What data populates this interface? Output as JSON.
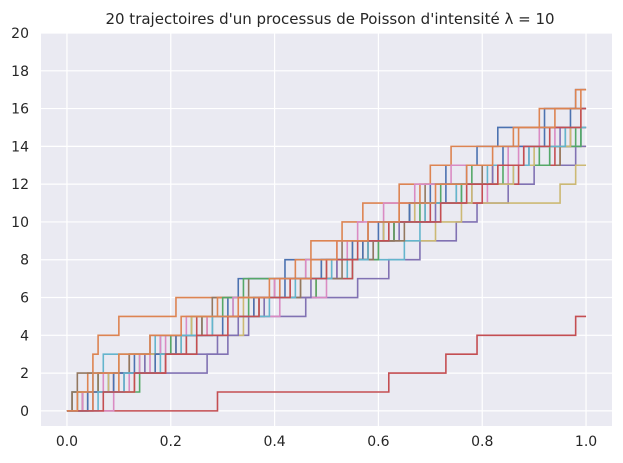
{
  "chart_data": {
    "type": "line",
    "title": "20 trajectoires d'un processus de Poisson d'intensité λ = 10",
    "xlabel": "",
    "ylabel": "",
    "xlim": [
      -0.05,
      1.05
    ],
    "ylim": [
      -0.8,
      20
    ],
    "xticks": [
      0.0,
      0.2,
      0.4,
      0.6,
      0.8,
      1.0
    ],
    "xtick_labels": [
      "0.0",
      "0.2",
      "0.4",
      "0.6",
      "0.8",
      "1.0"
    ],
    "yticks": [
      0,
      2,
      4,
      6,
      8,
      10,
      12,
      14,
      16,
      18,
      20
    ],
    "ytick_labels": [
      "0",
      "2",
      "4",
      "6",
      "8",
      "10",
      "12",
      "14",
      "16",
      "18",
      "20"
    ],
    "grid": true,
    "background": "#eaeaf2",
    "grid_color": "#ffffff",
    "step_style": "post",
    "series": [
      {
        "color": "#c44e52",
        "jumps": [
          0.29,
          0.62,
          0.73,
          0.79,
          0.98
        ]
      },
      {
        "color": "#dd8452",
        "jumps": [
          0.01,
          0.04,
          0.05,
          0.06,
          0.1,
          0.21,
          0.48,
          0.52,
          0.57,
          0.61,
          0.64,
          0.68,
          0.83,
          0.95
        ]
      },
      {
        "color": "#55a868",
        "jumps": [
          0.03,
          0.14,
          0.15,
          0.25,
          0.28,
          0.35,
          0.48,
          0.55,
          0.58,
          0.63,
          0.66,
          0.72,
          0.78,
          0.91,
          0.98
        ]
      },
      {
        "color": "#8172b3",
        "jumps": [
          0.05,
          0.09,
          0.27,
          0.31,
          0.35,
          0.46,
          0.56,
          0.62,
          0.68,
          0.75,
          0.79,
          0.85,
          0.9,
          0.98
        ]
      },
      {
        "color": "#937860",
        "jumps": [
          0.01,
          0.02,
          0.12,
          0.2,
          0.26,
          0.28,
          0.35,
          0.46,
          0.53,
          0.58,
          0.66,
          0.69,
          0.82,
          0.95,
          0.99
        ]
      },
      {
        "color": "#da8bc3",
        "jumps": [
          0.09,
          0.12,
          0.16,
          0.19,
          0.23,
          0.41,
          0.5,
          0.52,
          0.54,
          0.63,
          0.67,
          0.81,
          0.85,
          0.87,
          0.91
        ]
      },
      {
        "color": "#ccb974",
        "jumps": [
          0.04,
          0.13,
          0.17,
          0.23,
          0.34,
          0.38,
          0.45,
          0.5,
          0.6,
          0.71,
          0.76,
          0.95,
          0.98
        ]
      },
      {
        "color": "#4c72b0",
        "jumps": [
          0.02,
          0.08,
          0.13,
          0.18,
          0.28,
          0.31,
          0.33,
          0.42,
          0.57,
          0.61,
          0.66,
          0.7,
          0.73,
          0.79,
          0.83,
          0.92,
          0.98
        ]
      },
      {
        "color": "#64b5cd",
        "jumps": [
          0.01,
          0.05,
          0.07,
          0.17,
          0.26,
          0.32,
          0.41,
          0.54,
          0.65,
          0.68,
          0.72,
          0.76,
          0.86,
          0.93,
          0.99
        ]
      },
      {
        "color": "#c44e52",
        "jumps": [
          0.03,
          0.09,
          0.19,
          0.23,
          0.25,
          0.36,
          0.4,
          0.55,
          0.58,
          0.63,
          0.7,
          0.8,
          0.87,
          0.94,
          0.97
        ]
      },
      {
        "color": "#dd8452",
        "jumps": [
          0.05,
          0.1,
          0.12,
          0.21,
          0.27,
          0.29,
          0.41,
          0.44,
          0.47,
          0.53,
          0.57,
          0.64,
          0.7,
          0.74,
          0.86,
          0.91,
          0.98
        ]
      },
      {
        "color": "#55a868",
        "jumps": [
          0.02,
          0.06,
          0.14,
          0.2,
          0.24,
          0.3,
          0.34,
          0.49,
          0.6,
          0.63,
          0.68,
          0.76,
          0.84,
          0.93,
          0.99
        ]
      },
      {
        "color": "#8172b3",
        "jumps": [
          0.04,
          0.11,
          0.15,
          0.29,
          0.33,
          0.38,
          0.47,
          0.52,
          0.59,
          0.64,
          0.71,
          0.78,
          0.82,
          0.89,
          0.95
        ]
      },
      {
        "color": "#937860",
        "jumps": [
          0.01,
          0.06,
          0.12,
          0.16,
          0.26,
          0.37,
          0.45,
          0.53,
          0.59,
          0.65,
          0.69,
          0.75,
          0.8,
          0.88,
          0.96
        ]
      },
      {
        "color": "#da8bc3",
        "jumps": [
          0.03,
          0.07,
          0.14,
          0.18,
          0.27,
          0.32,
          0.4,
          0.46,
          0.52,
          0.56,
          0.61,
          0.67,
          0.74,
          0.85,
          0.94
        ]
      },
      {
        "color": "#ccb974",
        "jumps": [
          0.02,
          0.08,
          0.1,
          0.22,
          0.24,
          0.34,
          0.43,
          0.51,
          0.55,
          0.61,
          0.67,
          0.78,
          0.86,
          0.9,
          0.97,
          0.99
        ]
      },
      {
        "color": "#4c72b0",
        "jumps": [
          0.04,
          0.09,
          0.17,
          0.21,
          0.3,
          0.36,
          0.42,
          0.49,
          0.55,
          0.6,
          0.66,
          0.73,
          0.77,
          0.84,
          0.92,
          0.97
        ]
      },
      {
        "color": "#64b5cd",
        "jumps": [
          0.06,
          0.11,
          0.18,
          0.22,
          0.28,
          0.39,
          0.44,
          0.51,
          0.58,
          0.62,
          0.69,
          0.75,
          0.81,
          0.89,
          0.96
        ]
      },
      {
        "color": "#c44e52",
        "jumps": [
          0.07,
          0.13,
          0.19,
          0.25,
          0.31,
          0.37,
          0.43,
          0.5,
          0.56,
          0.62,
          0.72,
          0.77,
          0.83,
          0.88,
          0.93,
          0.99
        ]
      },
      {
        "color": "#dd8452",
        "jumps": [
          0.02,
          0.05,
          0.1,
          0.16,
          0.22,
          0.33,
          0.39,
          0.47,
          0.52,
          0.58,
          0.64,
          0.71,
          0.77,
          0.82,
          0.87,
          0.94,
          0.99
        ]
      }
    ]
  }
}
